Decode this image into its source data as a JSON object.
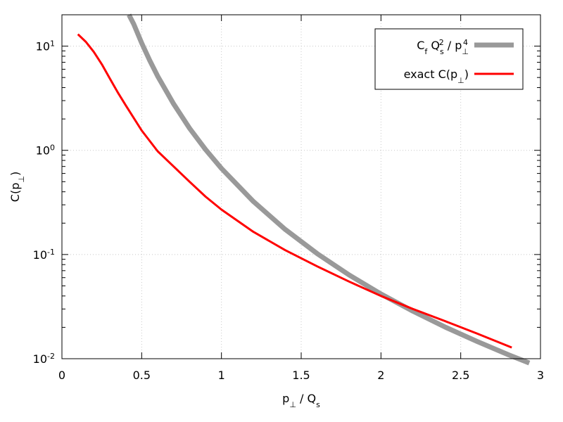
{
  "chart_data": {
    "type": "line",
    "xlabel": "p⊥ / Qs",
    "ylabel": "C(p⊥)",
    "xlim": [
      0,
      3
    ],
    "ylim": [
      0.01,
      20
    ],
    "yscale": "log",
    "grid": true,
    "legend_position": "top-right",
    "x_ticks": [
      0,
      0.5,
      1,
      1.5,
      2,
      2.5,
      3
    ],
    "x_tick_labels": [
      "0",
      "0.5",
      "1",
      "1.5",
      "2",
      "2.5",
      "3"
    ],
    "y_ticks": [
      0.01,
      0.1,
      1,
      10
    ],
    "y_tick_labels": [
      {
        "base": "10",
        "exp": "-2"
      },
      {
        "base": "10",
        "exp": "-1"
      },
      {
        "base": "10",
        "exp": "0"
      },
      {
        "base": "10",
        "exp": "1"
      }
    ],
    "series": [
      {
        "name": "Cf Qs² / p⊥⁴",
        "color": "#999999",
        "x": [
          0.42,
          0.45,
          0.5,
          0.55,
          0.6,
          0.7,
          0.8,
          0.9,
          1.0,
          1.2,
          1.4,
          1.6,
          1.8,
          2.0,
          2.2,
          2.4,
          2.6,
          2.8,
          2.93
        ],
        "y": [
          21.5,
          16.3,
          10.7,
          7.31,
          5.16,
          2.79,
          1.63,
          1.02,
          0.67,
          0.323,
          0.174,
          0.102,
          0.0637,
          0.0418,
          0.0286,
          0.0202,
          0.0147,
          0.0109,
          0.0091
        ]
      },
      {
        "name": "exact C(p⊥)",
        "color": "#ff0000",
        "x": [
          0.1,
          0.15,
          0.2,
          0.25,
          0.3,
          0.35,
          0.4,
          0.5,
          0.6,
          0.7,
          0.8,
          0.9,
          1.0,
          1.2,
          1.4,
          1.6,
          1.8,
          2.0,
          2.2,
          2.4,
          2.6,
          2.82
        ],
        "y": [
          13.0,
          11.0,
          8.8,
          6.7,
          4.9,
          3.6,
          2.7,
          1.55,
          0.98,
          0.7,
          0.5,
          0.36,
          0.27,
          0.165,
          0.11,
          0.077,
          0.055,
          0.04,
          0.03,
          0.023,
          0.0175,
          0.0128
        ]
      }
    ]
  }
}
